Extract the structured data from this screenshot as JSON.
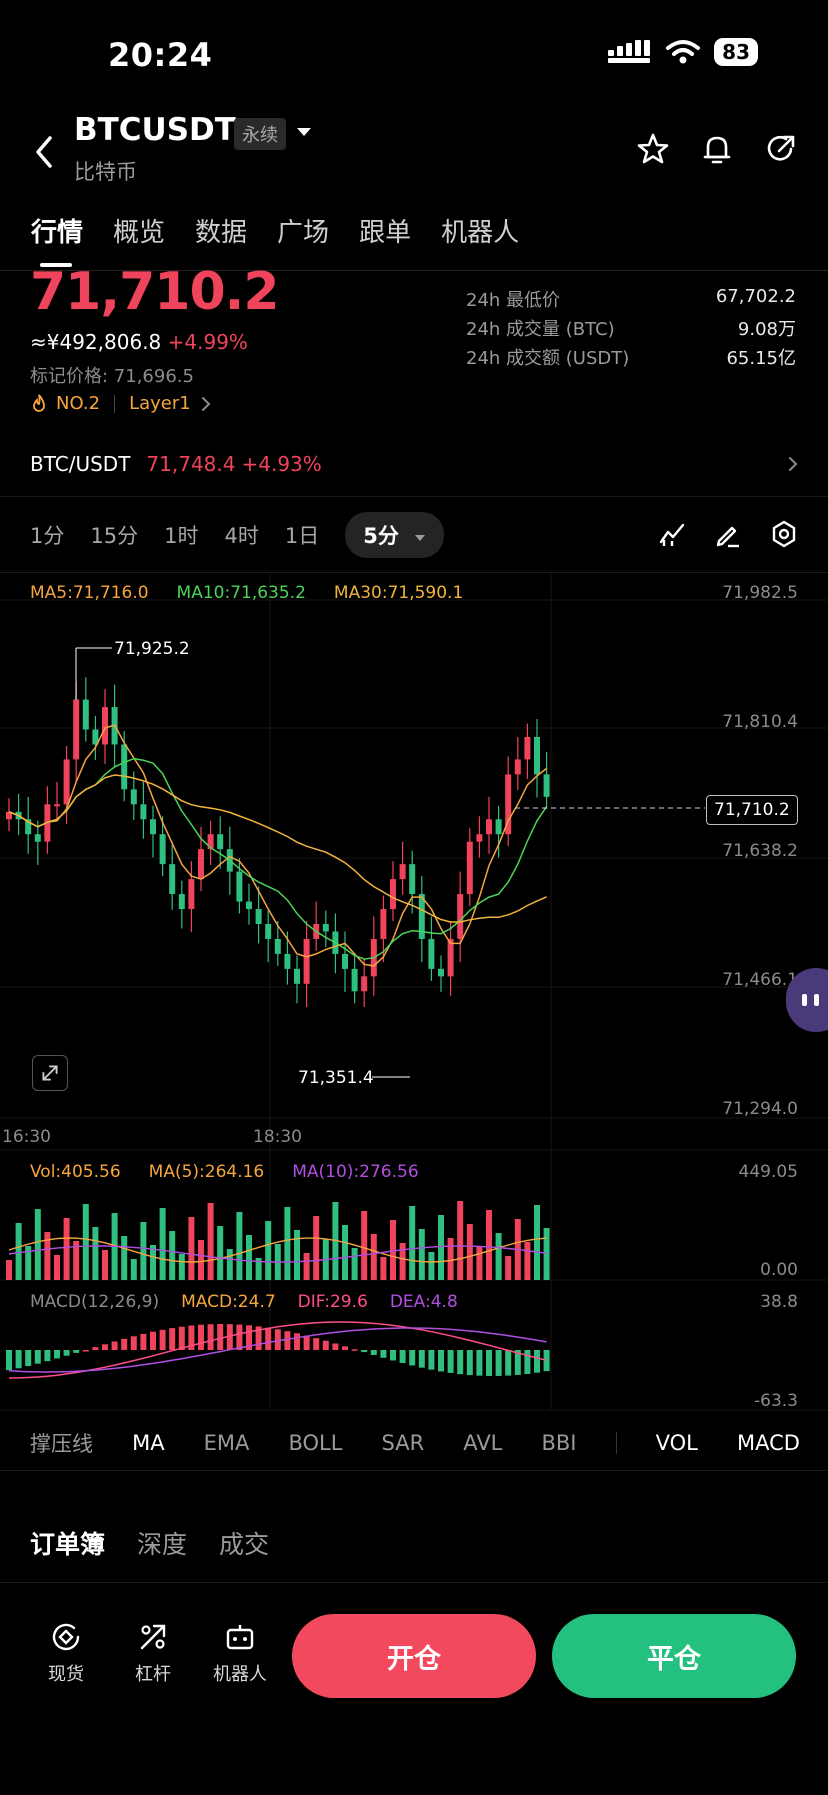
{
  "status_bar": {
    "time": "20:24",
    "battery": "83"
  },
  "header": {
    "title": "BTCUSDT",
    "badge": "永续",
    "subtitle": "比特币"
  },
  "tabs": [
    "行情",
    "概览",
    "数据",
    "广场",
    "跟单",
    "机器人"
  ],
  "price": {
    "last": "71,710.2",
    "cny": "≈¥492,806.8",
    "change": "+4.99%",
    "mark_price": "标记价格: 71,696.5",
    "rank": "NO.2",
    "sector": "Layer1"
  },
  "stats": [
    {
      "label": "24h 最低价",
      "value": "67,702.2"
    },
    {
      "label": "24h 成交量 (BTC)",
      "value": "9.08万"
    },
    {
      "label": "24h 成交额 (USDT)",
      "value": "65.15亿"
    }
  ],
  "spot": {
    "pair": "BTC/USDT",
    "price": "71,748.4",
    "change": "+4.93%"
  },
  "intervals": [
    "1分",
    "15分",
    "1时",
    "4时",
    "1日"
  ],
  "selected_interval": "5分",
  "ma_legend": {
    "ma5": "MA5:71,716.0",
    "ma10": "MA10:71,635.2",
    "ma30": "MA30:71,590.1"
  },
  "price_axis": [
    "71,982.5",
    "71,810.4",
    "71,638.2",
    "71,466.1",
    "71,294.0"
  ],
  "current_price_tag": "71,710.2",
  "high_label": "71,925.2",
  "low_label": "71,351.4",
  "time_axis": [
    "16:30",
    "18:30"
  ],
  "vol_legend": {
    "vol": "Vol:405.56",
    "ma5": "MA(5):264.16",
    "ma10": "MA(10):276.56"
  },
  "vol_axis": [
    "449.05",
    "0.00"
  ],
  "macd_legend": {
    "label": "MACD(12,26,9)",
    "macd": "MACD:24.7",
    "dif": "DIF:29.6",
    "dea": "DEA:4.8"
  },
  "macd_axis": [
    "38.8",
    "-63.3"
  ],
  "indicators": [
    "撑压线",
    "MA",
    "EMA",
    "BOLL",
    "SAR",
    "AVL",
    "BBI",
    "VOL",
    "MACD"
  ],
  "orderbook_tabs": [
    "订单簿",
    "深度",
    "成交"
  ],
  "bottom_nav": [
    "现货",
    "杠杆",
    "机器人"
  ],
  "buttons": {
    "open": "开仓",
    "close": "平仓"
  },
  "colors": {
    "up": "#f0435c",
    "down": "#2fbf7f",
    "ma5": "#f6a53f",
    "ma10": "#4cd35a",
    "ma30": "#f2b43a",
    "dif": "#ff4f8b",
    "dea": "#b04fe0"
  }
}
